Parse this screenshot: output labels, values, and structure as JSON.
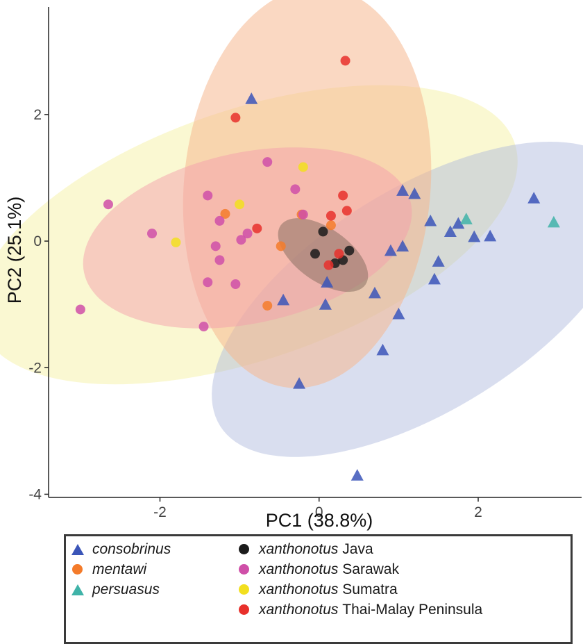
{
  "chart_data": {
    "type": "scatter",
    "title": "",
    "xlabel": "PC1 (38.8%)",
    "ylabel": "PC2 (25.1%)",
    "xlim": [
      -3.4,
      3.3
    ],
    "ylim": [
      -4.05,
      3.7
    ],
    "xticks": [
      -2,
      0,
      2
    ],
    "yticks": [
      -4,
      -2,
      0,
      2
    ],
    "xtick_labels": [
      "-2",
      "0",
      "2"
    ],
    "ytick_labels": [
      "-4",
      "-2",
      "0",
      "2"
    ],
    "grid": false,
    "legend_position": "bottom",
    "series": [
      {
        "key": "consobrinus",
        "legend_italic": "consobrinus",
        "legend_plain": "",
        "shape": "triangle",
        "color": "#3b55b8",
        "ellipse": {
          "cx": 1.3,
          "cy": -0.92,
          "rx": 3.0,
          "ry": 1.75,
          "angle": 32,
          "fill": "#aab6dc",
          "opacity": 0.45
        },
        "points": [
          [
            -0.85,
            2.25
          ],
          [
            1.05,
            0.8
          ],
          [
            1.2,
            0.75
          ],
          [
            1.4,
            0.32
          ],
          [
            1.65,
            0.15
          ],
          [
            1.75,
            0.28
          ],
          [
            1.95,
            0.07
          ],
          [
            2.15,
            0.08
          ],
          [
            2.7,
            0.68
          ],
          [
            1.05,
            -0.08
          ],
          [
            0.9,
            -0.15
          ],
          [
            1.5,
            -0.32
          ],
          [
            1.45,
            -0.6
          ],
          [
            0.1,
            -0.65
          ],
          [
            0.7,
            -0.82
          ],
          [
            -0.45,
            -0.93
          ],
          [
            0.08,
            -1.0
          ],
          [
            1.0,
            -1.15
          ],
          [
            0.8,
            -1.72
          ],
          [
            -0.25,
            -2.25
          ],
          [
            0.48,
            -3.7
          ]
        ]
      },
      {
        "key": "mentawi",
        "legend_italic": "mentawi",
        "legend_plain": "",
        "shape": "circle",
        "color": "#f47b2a",
        "ellipse": {
          "cx": -0.15,
          "cy": 0.85,
          "rx": 1.55,
          "ry": 3.18,
          "angle": -5,
          "fill": "#f6b88f",
          "opacity": 0.55
        },
        "points": [
          [
            -1.18,
            0.43
          ],
          [
            -0.22,
            0.42
          ],
          [
            0.15,
            0.25
          ],
          [
            -0.48,
            -0.08
          ],
          [
            -0.65,
            -1.02
          ]
        ]
      },
      {
        "key": "persuasus",
        "legend_italic": "persuasus",
        "legend_plain": "",
        "shape": "triangle",
        "color": "#3fb3a8",
        "ellipse": null,
        "points": [
          [
            1.85,
            0.35
          ],
          [
            2.95,
            0.3
          ]
        ]
      },
      {
        "key": "xanthonotus_java",
        "legend_italic": "xanthonotus",
        "legend_plain": " Java",
        "shape": "circle",
        "color": "#1b1b1b",
        "ellipse": {
          "cx": 0.05,
          "cy": -0.22,
          "rx": 0.65,
          "ry": 0.42,
          "angle": -35,
          "fill": "#8b7062",
          "opacity": 0.55
        },
        "points": [
          [
            0.05,
            0.15
          ],
          [
            -0.05,
            -0.2
          ],
          [
            0.2,
            -0.35
          ],
          [
            0.38,
            -0.15
          ],
          [
            0.3,
            -0.3
          ]
        ]
      },
      {
        "key": "xanthonotus_sarawak",
        "legend_italic": "xanthonotus",
        "legend_plain": " Sarawak",
        "shape": "circle",
        "color": "#cf4fa8",
        "ellipse": {
          "cx": -0.9,
          "cy": 0.05,
          "rx": 2.1,
          "ry": 1.35,
          "angle": 12,
          "fill": "#f3a0ac",
          "opacity": 0.5
        },
        "points": [
          [
            -0.65,
            1.25
          ],
          [
            -0.3,
            0.82
          ],
          [
            -1.4,
            0.72
          ],
          [
            -2.65,
            0.58
          ],
          [
            -1.25,
            0.32
          ],
          [
            -0.9,
            0.12
          ],
          [
            -0.98,
            0.02
          ],
          [
            -2.1,
            0.12
          ],
          [
            -1.3,
            -0.08
          ],
          [
            -1.25,
            -0.3
          ],
          [
            -0.2,
            0.42
          ],
          [
            -1.4,
            -0.65
          ],
          [
            -1.05,
            -0.68
          ],
          [
            -1.45,
            -1.35
          ],
          [
            -3.0,
            -1.08
          ]
        ]
      },
      {
        "key": "xanthonotus_sumatra",
        "legend_italic": "xanthonotus",
        "legend_plain": " Sumatra",
        "shape": "circle",
        "color": "#f2df1f",
        "ellipse": {
          "cx": -0.9,
          "cy": 0.1,
          "rx": 3.55,
          "ry": 1.97,
          "angle": 19,
          "fill": "#f6f2ad",
          "opacity": 0.55
        },
        "points": [
          [
            -0.2,
            1.17
          ],
          [
            -1.0,
            0.58
          ],
          [
            -1.8,
            -0.02
          ]
        ]
      },
      {
        "key": "xanthonotus_thaimalay",
        "legend_italic": "xanthonotus",
        "legend_plain": " Thai-Malay Peninsula",
        "shape": "circle",
        "color": "#e8302b",
        "ellipse": null,
        "points": [
          [
            0.33,
            2.85
          ],
          [
            -1.05,
            1.95
          ],
          [
            0.3,
            0.72
          ],
          [
            0.35,
            0.48
          ],
          [
            0.15,
            0.4
          ],
          [
            -0.78,
            0.2
          ],
          [
            0.25,
            -0.2
          ],
          [
            0.12,
            -0.38
          ]
        ]
      }
    ]
  },
  "legend": {
    "col1": [
      {
        "italic": "consobrinus",
        "plain": "",
        "color": "#3b55b8",
        "shape": "triangle"
      },
      {
        "italic": "mentawi",
        "plain": "",
        "color": "#f47b2a",
        "shape": "circle"
      },
      {
        "italic": "persuasus",
        "plain": "",
        "color": "#3fb3a8",
        "shape": "triangle"
      }
    ],
    "col2": [
      {
        "italic": "xanthonotus",
        "plain": " Java",
        "color": "#1b1b1b",
        "shape": "circle"
      },
      {
        "italic": "xanthonotus",
        "plain": " Sarawak",
        "color": "#cf4fa8",
        "shape": "circle"
      },
      {
        "italic": "xanthonotus",
        "plain": " Sumatra",
        "color": "#f2df1f",
        "shape": "circle"
      },
      {
        "italic": "xanthonotus",
        "plain": " Thai-Malay Peninsula",
        "color": "#e8302b",
        "shape": "circle"
      }
    ]
  }
}
